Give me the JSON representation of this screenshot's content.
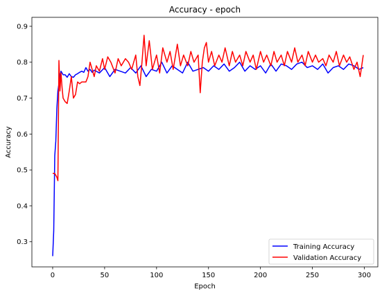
{
  "chart_data": {
    "type": "line",
    "title": "Accuracy - epoch",
    "xlabel": "Epoch",
    "ylabel": "Accuracy",
    "xlim": [
      -20,
      313
    ],
    "ylim": [
      0.23,
      0.925
    ],
    "xticks": [
      0,
      50,
      100,
      150,
      200,
      250,
      300
    ],
    "yticks": [
      0.3,
      0.4,
      0.5,
      0.6,
      0.7,
      0.8,
      0.9
    ],
    "grid": false,
    "legend_position": "bottom-right",
    "series": [
      {
        "name": "Training Accuracy",
        "color": "#0000ff",
        "x": [
          0,
          1,
          2,
          3,
          4,
          5,
          6,
          7,
          8,
          9,
          10,
          12,
          14,
          16,
          18,
          20,
          22,
          24,
          26,
          28,
          30,
          32,
          34,
          36,
          38,
          40,
          45,
          50,
          55,
          60,
          65,
          70,
          75,
          80,
          85,
          90,
          95,
          100,
          105,
          110,
          115,
          120,
          125,
          130,
          135,
          140,
          145,
          150,
          155,
          160,
          165,
          170,
          175,
          180,
          185,
          190,
          195,
          200,
          205,
          210,
          215,
          220,
          225,
          230,
          235,
          240,
          245,
          250,
          255,
          260,
          265,
          270,
          275,
          280,
          285,
          290,
          295,
          299
        ],
        "y": [
          0.26,
          0.33,
          0.54,
          0.58,
          0.67,
          0.72,
          0.74,
          0.76,
          0.775,
          0.77,
          0.765,
          0.765,
          0.758,
          0.768,
          0.76,
          0.758,
          0.765,
          0.768,
          0.772,
          0.775,
          0.772,
          0.785,
          0.775,
          0.78,
          0.772,
          0.778,
          0.77,
          0.785,
          0.76,
          0.78,
          0.775,
          0.77,
          0.785,
          0.77,
          0.79,
          0.76,
          0.78,
          0.775,
          0.8,
          0.77,
          0.79,
          0.78,
          0.77,
          0.8,
          0.775,
          0.78,
          0.785,
          0.775,
          0.79,
          0.78,
          0.795,
          0.775,
          0.785,
          0.8,
          0.775,
          0.79,
          0.78,
          0.79,
          0.77,
          0.795,
          0.775,
          0.795,
          0.79,
          0.78,
          0.795,
          0.8,
          0.785,
          0.79,
          0.78,
          0.795,
          0.77,
          0.785,
          0.79,
          0.78,
          0.795,
          0.79,
          0.78,
          0.785
        ]
      },
      {
        "name": "Validation Accuracy",
        "color": "#ff0000",
        "x": [
          0,
          2,
          4,
          5,
          6,
          7,
          8,
          9,
          10,
          12,
          14,
          16,
          18,
          20,
          22,
          24,
          26,
          28,
          30,
          32,
          34,
          36,
          38,
          40,
          42,
          45,
          48,
          50,
          53,
          56,
          60,
          63,
          66,
          70,
          73,
          76,
          80,
          82,
          84,
          86,
          88,
          90,
          93,
          96,
          100,
          103,
          106,
          110,
          113,
          116,
          120,
          123,
          126,
          130,
          133,
          136,
          140,
          142,
          144,
          146,
          148,
          150,
          153,
          156,
          160,
          163,
          166,
          170,
          173,
          176,
          180,
          183,
          186,
          190,
          193,
          196,
          200,
          203,
          206,
          210,
          213,
          216,
          220,
          223,
          226,
          230,
          233,
          236,
          240,
          243,
          246,
          250,
          253,
          256,
          260,
          263,
          266,
          270,
          273,
          276,
          280,
          283,
          286,
          290,
          293,
          296,
          299
        ],
        "y": [
          0.49,
          0.49,
          0.48,
          0.47,
          0.805,
          0.72,
          0.77,
          0.73,
          0.7,
          0.69,
          0.685,
          0.72,
          0.76,
          0.7,
          0.71,
          0.745,
          0.74,
          0.745,
          0.745,
          0.745,
          0.76,
          0.8,
          0.78,
          0.76,
          0.79,
          0.775,
          0.81,
          0.78,
          0.815,
          0.8,
          0.77,
          0.81,
          0.79,
          0.81,
          0.8,
          0.78,
          0.82,
          0.76,
          0.735,
          0.8,
          0.875,
          0.79,
          0.86,
          0.78,
          0.82,
          0.77,
          0.84,
          0.8,
          0.83,
          0.78,
          0.85,
          0.79,
          0.82,
          0.79,
          0.83,
          0.8,
          0.82,
          0.715,
          0.8,
          0.84,
          0.855,
          0.8,
          0.83,
          0.79,
          0.82,
          0.8,
          0.84,
          0.79,
          0.83,
          0.8,
          0.82,
          0.79,
          0.83,
          0.8,
          0.82,
          0.78,
          0.83,
          0.8,
          0.82,
          0.79,
          0.83,
          0.8,
          0.82,
          0.79,
          0.83,
          0.8,
          0.84,
          0.8,
          0.82,
          0.79,
          0.83,
          0.8,
          0.82,
          0.8,
          0.81,
          0.79,
          0.82,
          0.8,
          0.83,
          0.79,
          0.82,
          0.8,
          0.815,
          0.78,
          0.8,
          0.76,
          0.82
        ]
      }
    ]
  }
}
